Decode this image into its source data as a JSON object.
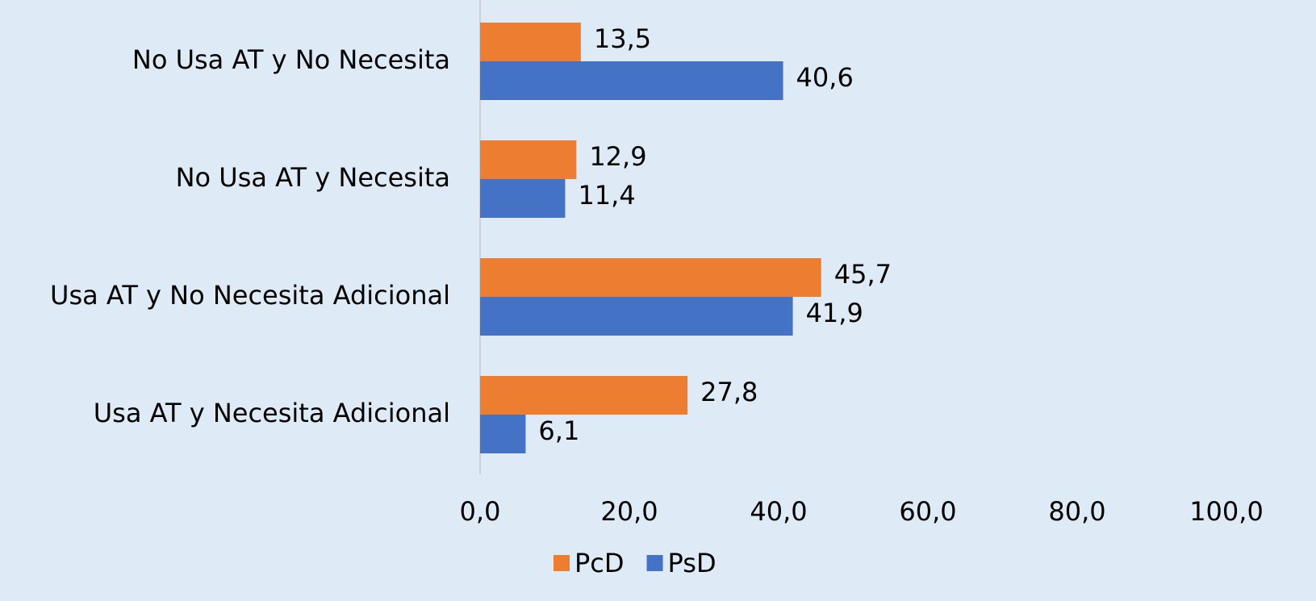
{
  "chart_data": {
    "type": "bar",
    "orientation": "horizontal",
    "categories": [
      "No Usa AT y No Necesita",
      "No Usa AT y Necesita",
      "Usa AT y No Necesita Adicional",
      "Usa AT y Necesita Adicional"
    ],
    "series": [
      {
        "name": "PcD",
        "color": "#ed7d31",
        "values": [
          13.5,
          12.9,
          45.7,
          27.8
        ],
        "value_labels": [
          "13,5",
          "12,9",
          "45,7",
          "27,8"
        ]
      },
      {
        "name": "PsD",
        "color": "#4472c4",
        "values": [
          40.6,
          11.4,
          41.9,
          6.1
        ],
        "value_labels": [
          "40,6",
          "11,4",
          "41,9",
          "6,1"
        ]
      }
    ],
    "xlim": [
      0,
      100
    ],
    "xticks": [
      {
        "value": 0,
        "label": "0,0"
      },
      {
        "value": 20,
        "label": "20,0"
      },
      {
        "value": 40,
        "label": "40,0"
      },
      {
        "value": 60,
        "label": "60,0"
      },
      {
        "value": 80,
        "label": "80,0"
      },
      {
        "value": 100,
        "label": "100,0"
      }
    ],
    "grid": false,
    "legend": "bottom"
  }
}
